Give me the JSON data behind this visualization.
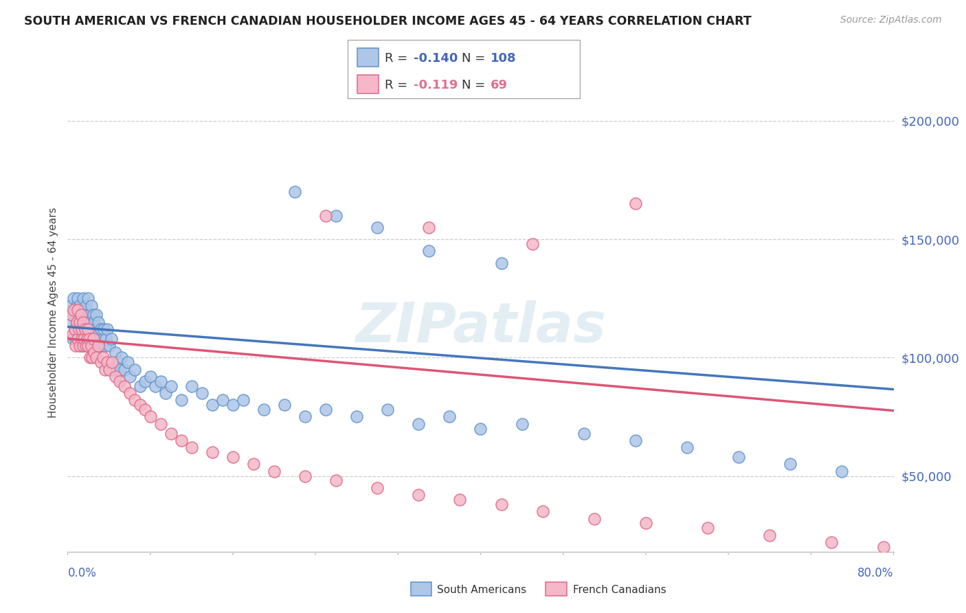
{
  "title": "SOUTH AMERICAN VS FRENCH CANADIAN HOUSEHOLDER INCOME AGES 45 - 64 YEARS CORRELATION CHART",
  "source": "Source: ZipAtlas.com",
  "ylabel": "Householder Income Ages 45 - 64 years",
  "xlim": [
    0.0,
    0.8
  ],
  "ylim": [
    18000,
    220000
  ],
  "yticks": [
    50000,
    100000,
    150000,
    200000
  ],
  "ytick_labels": [
    "$50,000",
    "$100,000",
    "$150,000",
    "$200,000"
  ],
  "watermark": "ZIPatlas",
  "sa_color": "#aec6e8",
  "fc_color": "#f4b8c8",
  "sa_edge_color": "#6699cc",
  "fc_edge_color": "#e07090",
  "sa_line_color": "#4477bb",
  "fc_line_color": "#dd5577",
  "title_color": "#222222",
  "source_color": "#999999",
  "axis_label_color": "#4466bb",
  "grid_color": "#cccccc",
  "background_color": "#ffffff",
  "sa_slope": -33000,
  "sa_intercept": 113000,
  "fc_slope": -38000,
  "fc_intercept": 108000,
  "south_americans_x": [
    0.003,
    0.004,
    0.005,
    0.005,
    0.006,
    0.007,
    0.007,
    0.008,
    0.008,
    0.009,
    0.009,
    0.01,
    0.01,
    0.01,
    0.011,
    0.011,
    0.012,
    0.012,
    0.013,
    0.013,
    0.014,
    0.014,
    0.015,
    0.015,
    0.015,
    0.016,
    0.016,
    0.017,
    0.017,
    0.018,
    0.018,
    0.019,
    0.019,
    0.02,
    0.02,
    0.02,
    0.021,
    0.021,
    0.022,
    0.022,
    0.023,
    0.023,
    0.024,
    0.024,
    0.025,
    0.025,
    0.026,
    0.026,
    0.027,
    0.028,
    0.028,
    0.029,
    0.03,
    0.03,
    0.031,
    0.032,
    0.033,
    0.034,
    0.035,
    0.036,
    0.037,
    0.038,
    0.04,
    0.042,
    0.044,
    0.046,
    0.048,
    0.05,
    0.052,
    0.055,
    0.058,
    0.06,
    0.065,
    0.07,
    0.075,
    0.08,
    0.085,
    0.09,
    0.095,
    0.1,
    0.11,
    0.12,
    0.13,
    0.14,
    0.15,
    0.16,
    0.17,
    0.19,
    0.21,
    0.23,
    0.25,
    0.28,
    0.31,
    0.34,
    0.37,
    0.4,
    0.44,
    0.5,
    0.55,
    0.6,
    0.65,
    0.7,
    0.75,
    0.22,
    0.26,
    0.3,
    0.35,
    0.42
  ],
  "south_americans_y": [
    122000,
    115000,
    118000,
    108000,
    125000,
    112000,
    120000,
    108000,
    118000,
    115000,
    122000,
    108000,
    118000,
    125000,
    112000,
    118000,
    105000,
    122000,
    115000,
    108000,
    118000,
    112000,
    125000,
    115000,
    105000,
    118000,
    108000,
    120000,
    112000,
    115000,
    122000,
    108000,
    118000,
    115000,
    105000,
    125000,
    112000,
    108000,
    118000,
    115000,
    105000,
    122000,
    108000,
    112000,
    118000,
    105000,
    115000,
    108000,
    112000,
    118000,
    105000,
    112000,
    115000,
    105000,
    108000,
    112000,
    105000,
    108000,
    112000,
    105000,
    108000,
    112000,
    105000,
    108000,
    95000,
    102000,
    98000,
    95000,
    100000,
    95000,
    98000,
    92000,
    95000,
    88000,
    90000,
    92000,
    88000,
    90000,
    85000,
    88000,
    82000,
    88000,
    85000,
    80000,
    82000,
    80000,
    82000,
    78000,
    80000,
    75000,
    78000,
    75000,
    78000,
    72000,
    75000,
    70000,
    72000,
    68000,
    65000,
    62000,
    58000,
    55000,
    52000,
    170000,
    160000,
    155000,
    145000,
    140000
  ],
  "french_canadians_x": [
    0.004,
    0.005,
    0.006,
    0.007,
    0.008,
    0.009,
    0.01,
    0.01,
    0.011,
    0.012,
    0.012,
    0.013,
    0.014,
    0.014,
    0.015,
    0.015,
    0.016,
    0.017,
    0.018,
    0.019,
    0.02,
    0.02,
    0.021,
    0.022,
    0.023,
    0.024,
    0.025,
    0.026,
    0.028,
    0.03,
    0.032,
    0.034,
    0.036,
    0.038,
    0.04,
    0.043,
    0.046,
    0.05,
    0.055,
    0.06,
    0.065,
    0.07,
    0.075,
    0.08,
    0.09,
    0.1,
    0.11,
    0.12,
    0.14,
    0.16,
    0.18,
    0.2,
    0.23,
    0.26,
    0.3,
    0.34,
    0.38,
    0.42,
    0.46,
    0.51,
    0.56,
    0.62,
    0.68,
    0.74,
    0.79,
    0.25,
    0.35,
    0.45,
    0.55
  ],
  "french_canadians_y": [
    118000,
    110000,
    120000,
    112000,
    105000,
    115000,
    108000,
    120000,
    112000,
    115000,
    105000,
    118000,
    108000,
    112000,
    115000,
    105000,
    108000,
    112000,
    105000,
    108000,
    112000,
    105000,
    108000,
    100000,
    105000,
    100000,
    108000,
    102000,
    100000,
    105000,
    98000,
    100000,
    95000,
    98000,
    95000,
    98000,
    92000,
    90000,
    88000,
    85000,
    82000,
    80000,
    78000,
    75000,
    72000,
    68000,
    65000,
    62000,
    60000,
    58000,
    55000,
    52000,
    50000,
    48000,
    45000,
    42000,
    40000,
    38000,
    35000,
    32000,
    30000,
    28000,
    25000,
    22000,
    20000,
    160000,
    155000,
    148000,
    165000
  ]
}
